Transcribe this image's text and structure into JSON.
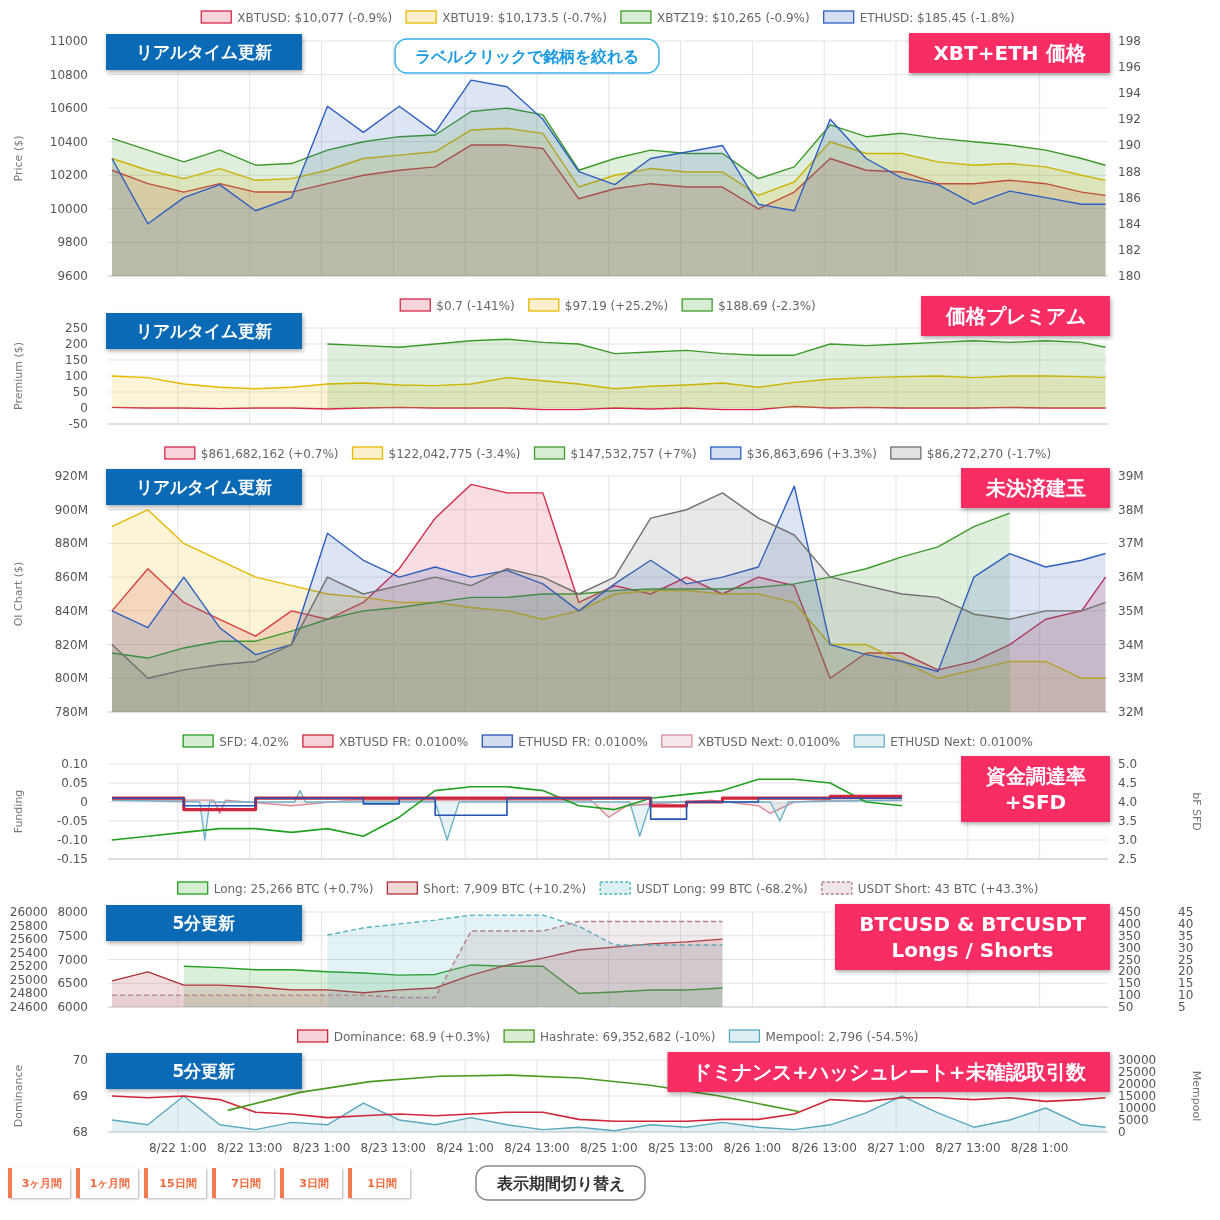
{
  "chart_data": [
    {
      "type": "area",
      "ylabel": "Price ($)",
      "legend": "top",
      "grid": true,
      "tick_labels": "y",
      "annotations": [
        "リアルタイム更新",
        "XBT+ETH 価格",
        "ラベルクリックで銘柄を絞れる"
      ],
      "xlim": [
        "--08-21T13:20",
        "--08-28T12:25"
      ],
      "xticks": [
        {
          "value": "--08-22T01:00",
          "label": null
        },
        {
          "value": "--08-22T13:00",
          "label": null
        },
        {
          "value": "--08-23T01:00",
          "label": null
        },
        {
          "value": "--08-23T13:00",
          "label": null
        },
        {
          "value": "--08-24T01:00",
          "label": null
        },
        {
          "value": "--08-24T13:00",
          "label": null
        },
        {
          "value": "--08-25T01:00",
          "label": null
        },
        {
          "value": "--08-25T13:00",
          "label": null
        },
        {
          "value": "--08-26T01:00",
          "label": null
        },
        {
          "value": "--08-26T13:00",
          "label": null
        },
        {
          "value": "--08-27T01:00",
          "label": null
        },
        {
          "value": "--08-27T13:00",
          "label": null
        },
        {
          "value": "--08-28T01:00",
          "label": null
        }
      ],
      "ylim": [
        9600,
        11000
      ],
      "yticks": [
        9600,
        9800,
        10000,
        10200,
        10400,
        10600,
        10800,
        11000
      ],
      "y2lim": [
        180,
        198
      ],
      "y2ticks": [
        180,
        182,
        184,
        186,
        188,
        190,
        192,
        194,
        196,
        198
      ],
      "x": [
        "--08-21T14:00",
        "--08-21T20:00",
        "--08-22T02:00",
        "--08-22T08:00",
        "--08-22T14:00",
        "--08-22T20:00",
        "--08-23T02:00",
        "--08-23T08:00",
        "--08-23T14:00",
        "--08-23T20:00",
        "--08-24T02:00",
        "--08-24T08:00",
        "--08-24T14:00",
        "--08-24T20:00",
        "--08-25T02:00",
        "--08-25T08:00",
        "--08-25T14:00",
        "--08-25T20:00",
        "--08-26T02:00",
        "--08-26T08:00",
        "--08-26T14:00",
        "--08-26T20:00",
        "--08-27T02:00",
        "--08-27T08:00",
        "--08-27T14:00",
        "--08-27T20:00",
        "--08-28T02:00",
        "--08-28T08:00",
        "--08-28T12:00"
      ],
      "series": [
        {
          "name": "XBTUSD: $10,077 (-0.9%)",
          "color": "#d6294a",
          "values": [
            10230,
            10150,
            10100,
            10150,
            10100,
            10100,
            10150,
            10200,
            10230,
            10250,
            10380,
            10380,
            10360,
            10060,
            10120,
            10150,
            10130,
            10130,
            10000,
            10100,
            10300,
            10230,
            10220,
            10150,
            10150,
            10170,
            10150,
            10100,
            10080
          ]
        },
        {
          "name": "XBTU19: $10,173.5 (-0.7%)",
          "color": "#e6b800",
          "values": [
            10300,
            10230,
            10180,
            10240,
            10170,
            10180,
            10230,
            10300,
            10320,
            10340,
            10470,
            10480,
            10450,
            10130,
            10200,
            10240,
            10220,
            10220,
            10080,
            10160,
            10400,
            10330,
            10330,
            10280,
            10260,
            10270,
            10250,
            10200,
            10170
          ]
        },
        {
          "name": "XBTZ19: $10,265 (-0.9%)",
          "color": "#3c9a2a",
          "values": [
            10420,
            10350,
            10280,
            10350,
            10260,
            10270,
            10350,
            10400,
            10430,
            10440,
            10580,
            10600,
            10560,
            10230,
            10300,
            10350,
            10330,
            10330,
            10180,
            10250,
            10500,
            10430,
            10450,
            10420,
            10400,
            10380,
            10350,
            10300,
            10260
          ]
        },
        {
          "name": "ETHUSD: $185.45 (-1.8%)",
          "color": "#2d5fc0",
          "axis": "y2",
          "values": [
            189,
            184,
            186,
            187,
            185,
            186,
            193,
            191,
            193,
            191,
            195,
            194.5,
            192,
            188,
            187,
            189,
            189.5,
            190,
            185.5,
            185,
            192,
            189,
            187.5,
            187,
            185.5,
            186.5,
            186,
            185.5,
            185.5
          ]
        }
      ]
    },
    {
      "type": "area",
      "ylabel": "Premium ($)",
      "legend": "top",
      "grid": true,
      "tick_labels": "y",
      "annotations": [
        "リアルタイム更新",
        "価格プレミアム"
      ],
      "xlim": [
        "--08-21T13:20",
        "--08-28T12:25"
      ],
      "xticks": [
        {
          "value": "--08-22T01:00",
          "label": null
        },
        {
          "value": "--08-22T13:00",
          "label": null
        },
        {
          "value": "--08-23T01:00",
          "label": null
        },
        {
          "value": "--08-23T13:00",
          "label": null
        },
        {
          "value": "--08-24T01:00",
          "label": null
        },
        {
          "value": "--08-24T13:00",
          "label": null
        },
        {
          "value": "--08-25T01:00",
          "label": null
        },
        {
          "value": "--08-25T13:00",
          "label": null
        },
        {
          "value": "--08-26T01:00",
          "label": null
        },
        {
          "value": "--08-26T13:00",
          "label": null
        },
        {
          "value": "--08-27T01:00",
          "label": null
        },
        {
          "value": "--08-27T13:00",
          "label": null
        },
        {
          "value": "--08-28T01:00",
          "label": null
        }
      ],
      "ylim": [
        -50,
        250
      ],
      "yticks": [
        -50,
        0,
        50,
        100,
        150,
        200,
        250
      ],
      "x": [
        "--08-21T14:00",
        "--08-21T20:00",
        "--08-22T02:00",
        "--08-22T08:00",
        "--08-22T14:00",
        "--08-22T20:00",
        "--08-23T02:00",
        "--08-23T08:00",
        "--08-23T14:00",
        "--08-23T20:00",
        "--08-24T02:00",
        "--08-24T08:00",
        "--08-24T14:00",
        "--08-24T20:00",
        "--08-25T02:00",
        "--08-25T08:00",
        "--08-25T14:00",
        "--08-25T20:00",
        "--08-26T02:00",
        "--08-26T08:00",
        "--08-26T14:00",
        "--08-26T20:00",
        "--08-27T02:00",
        "--08-27T08:00",
        "--08-27T14:00",
        "--08-27T20:00",
        "--08-28T02:00",
        "--08-28T08:00",
        "--08-28T12:00"
      ],
      "series": [
        {
          "name": "$0.7 (-141%)",
          "color": "#d6294a",
          "values": [
            2,
            0,
            0,
            -2,
            0,
            0,
            -3,
            0,
            2,
            0,
            0,
            0,
            -5,
            -5,
            0,
            -3,
            0,
            -5,
            -5,
            5,
            0,
            2,
            0,
            0,
            0,
            2,
            0,
            0,
            0
          ]
        },
        {
          "name": "$97.19 (+25.2%)",
          "color": "#e6b800",
          "values": [
            100,
            95,
            75,
            65,
            60,
            65,
            75,
            78,
            72,
            70,
            75,
            95,
            85,
            75,
            60,
            68,
            72,
            78,
            65,
            80,
            90,
            95,
            98,
            100,
            95,
            100,
            100,
            98,
            95
          ]
        },
        {
          "name": "$188.69 (-2.3%)",
          "color": "#3c9a2a",
          "values": [
            null,
            null,
            null,
            null,
            null,
            null,
            200,
            195,
            190,
            200,
            210,
            215,
            205,
            200,
            170,
            175,
            180,
            170,
            165,
            165,
            200,
            195,
            200,
            205,
            210,
            205,
            210,
            205,
            190
          ]
        }
      ]
    },
    {
      "type": "area",
      "ylabel": "OI Chart ($)",
      "legend": "top",
      "grid": true,
      "tick_labels": "y",
      "annotations": [
        "リアルタイム更新",
        "未決済建玉"
      ],
      "xlim": [
        "--08-21T13:20",
        "--08-28T12:25"
      ],
      "xticks": [
        {
          "value": "--08-22T01:00",
          "label": null
        },
        {
          "value": "--08-22T13:00",
          "label": null
        },
        {
          "value": "--08-23T01:00",
          "label": null
        },
        {
          "value": "--08-23T13:00",
          "label": null
        },
        {
          "value": "--08-24T01:00",
          "label": null
        },
        {
          "value": "--08-24T13:00",
          "label": null
        },
        {
          "value": "--08-25T01:00",
          "label": null
        },
        {
          "value": "--08-25T13:00",
          "label": null
        },
        {
          "value": "--08-26T01:00",
          "label": null
        },
        {
          "value": "--08-26T13:00",
          "label": null
        },
        {
          "value": "--08-27T01:00",
          "label": null
        },
        {
          "value": "--08-27T13:00",
          "label": null
        },
        {
          "value": "--08-28T01:00",
          "label": null
        }
      ],
      "ylim": [
        780,
        920
      ],
      "yticks": [
        {
          "value": 780,
          "label": "780M"
        },
        {
          "value": 800,
          "label": "800M"
        },
        {
          "value": 820,
          "label": "820M"
        },
        {
          "value": 840,
          "label": "840M"
        },
        {
          "value": 860,
          "label": "860M"
        },
        {
          "value": 880,
          "label": "880M"
        },
        {
          "value": 900,
          "label": "900M"
        },
        {
          "value": 920,
          "label": "920M"
        }
      ],
      "y2lim": [
        32,
        39
      ],
      "y2ticks": [
        {
          "value": 32,
          "label": "32M"
        },
        {
          "value": 33,
          "label": "33M"
        },
        {
          "value": 34,
          "label": "34M"
        },
        {
          "value": 35,
          "label": "35M"
        },
        {
          "value": 36,
          "label": "36M"
        },
        {
          "value": 37,
          "label": "37M"
        },
        {
          "value": 38,
          "label": "38M"
        },
        {
          "value": 39,
          "label": "39M"
        }
      ],
      "x": [
        "--08-21T14:00",
        "--08-21T20:00",
        "--08-22T02:00",
        "--08-22T08:00",
        "--08-22T14:00",
        "--08-22T20:00",
        "--08-23T02:00",
        "--08-23T08:00",
        "--08-23T14:00",
        "--08-23T20:00",
        "--08-24T02:00",
        "--08-24T08:00",
        "--08-24T14:00",
        "--08-24T20:00",
        "--08-25T02:00",
        "--08-25T08:00",
        "--08-25T14:00",
        "--08-25T20:00",
        "--08-26T02:00",
        "--08-26T08:00",
        "--08-26T14:00",
        "--08-26T20:00",
        "--08-27T02:00",
        "--08-27T08:00",
        "--08-27T14:00",
        "--08-27T20:00",
        "--08-28T02:00",
        "--08-28T08:00",
        "--08-28T12:00"
      ],
      "series": [
        {
          "name": "$861,682,162 (+0.7%)",
          "color": "#d6294a",
          "values": [
            840,
            865,
            845,
            835,
            825,
            840,
            835,
            845,
            865,
            895,
            915,
            910,
            910,
            845,
            855,
            850,
            860,
            850,
            860,
            855,
            800,
            815,
            815,
            805,
            810,
            820,
            835,
            840,
            860
          ]
        },
        {
          "name": "$122,042,775 (-3.4%)",
          "color": "#e6b800",
          "values": [
            890,
            900,
            880,
            870,
            860,
            855,
            850,
            848,
            845,
            845,
            842,
            840,
            835,
            840,
            850,
            852,
            852,
            850,
            850,
            845,
            820,
            820,
            810,
            800,
            805,
            810,
            810,
            800,
            800
          ]
        },
        {
          "name": "$147,532,757 (+7%)",
          "color": "#3c9a2a",
          "values": [
            815,
            812,
            818,
            822,
            822,
            828,
            835,
            840,
            842,
            845,
            848,
            848,
            850,
            850,
            852,
            853,
            853,
            853,
            854,
            856,
            860,
            865,
            872,
            878,
            890,
            898,
            null,
            null,
            null
          ]
        },
        {
          "name": "$36,863,696 (+3.3%)",
          "color": "#2d5fc0",
          "axis": "y2",
          "values": [
            35.0,
            34.5,
            36.0,
            34.5,
            33.7,
            34.0,
            37.3,
            36.5,
            36.0,
            36.3,
            36.0,
            36.2,
            35.8,
            35.0,
            35.8,
            36.5,
            35.8,
            36.0,
            36.3,
            38.7,
            34.0,
            33.7,
            33.5,
            33.2,
            36.0,
            36.7,
            36.3,
            36.5,
            36.7
          ]
        },
        {
          "name": "$86,272,270 (-1.7%)",
          "color": "#707070",
          "values": [
            820,
            800,
            805,
            808,
            810,
            820,
            860,
            850,
            855,
            860,
            855,
            865,
            860,
            850,
            860,
            895,
            900,
            910,
            895,
            885,
            860,
            855,
            850,
            848,
            838,
            835,
            840,
            840,
            845
          ]
        }
      ]
    },
    {
      "type": "line",
      "ylabel": "Funding",
      "y2label": "bF SFD",
      "legend": "top",
      "grid": true,
      "tick_labels": "y",
      "annotations": [
        "資金調達率\n+SFD"
      ],
      "xlim": [
        "--08-21T13:20",
        "--08-28T12:25"
      ],
      "xticks": [
        {
          "value": "--08-22T01:00",
          "label": null
        },
        {
          "value": "--08-22T13:00",
          "label": null
        },
        {
          "value": "--08-23T01:00",
          "label": null
        },
        {
          "value": "--08-23T13:00",
          "label": null
        },
        {
          "value": "--08-24T01:00",
          "label": null
        },
        {
          "value": "--08-24T13:00",
          "label": null
        },
        {
          "value": "--08-25T01:00",
          "label": null
        },
        {
          "value": "--08-25T13:00",
          "label": null
        },
        {
          "value": "--08-26T01:00",
          "label": null
        },
        {
          "value": "--08-26T13:00",
          "label": null
        },
        {
          "value": "--08-27T01:00",
          "label": null
        },
        {
          "value": "--08-27T13:00",
          "label": null
        },
        {
          "value": "--08-28T01:00",
          "label": null
        }
      ],
      "ylim": [
        -0.15,
        0.1
      ],
      "yticks": [
        {
          "value": -0.15,
          "label": "-0.15"
        },
        {
          "value": -0.1,
          "label": "-0.10"
        },
        {
          "value": -0.05,
          "label": "-0.05"
        },
        0,
        0.05,
        {
          "value": 0.1,
          "label": "0.10"
        }
      ],
      "y2lim": [
        2.5,
        5
      ],
      "y2ticks": [
        2.5,
        {
          "value": 3,
          "label": "3.0"
        },
        3.5,
        {
          "value": 4,
          "label": "4.0"
        },
        4.5,
        {
          "value": 5,
          "label": "5.0"
        }
      ],
      "x": [
        "--08-21T14:00",
        "--08-21T20:00",
        "--08-22T02:00",
        "--08-22T08:00",
        "--08-22T14:00",
        "--08-22T20:00",
        "--08-23T02:00",
        "--08-23T08:00",
        "--08-23T14:00",
        "--08-23T20:00",
        "--08-24T02:00",
        "--08-24T08:00",
        "--08-24T14:00",
        "--08-24T20:00",
        "--08-25T02:00",
        "--08-25T08:00",
        "--08-25T14:00",
        "--08-25T20:00",
        "--08-26T02:00",
        "--08-26T08:00",
        "--08-26T14:00",
        "--08-26T20:00",
        "--08-27T02:00"
      ],
      "series": [
        {
          "name": "SFD: 4.02%",
          "color": "#22a020",
          "axis": "y2",
          "values": [
            3.0,
            3.1,
            3.2,
            3.3,
            3.3,
            3.2,
            3.3,
            3.1,
            3.6,
            4.3,
            4.4,
            4.4,
            4.3,
            3.9,
            3.8,
            4.1,
            4.2,
            4.3,
            4.6,
            4.6,
            4.5,
            4.0,
            3.9
          ]
        },
        {
          "name": "XBTUSD FR: 0.0100%",
          "color": "#d0253a",
          "type": "step",
          "values": [
            0.01,
            0.01,
            -0.02,
            -0.02,
            0.01,
            0.01,
            0.01,
            0.01,
            0.01,
            0.01,
            0.01,
            0.01,
            0.01,
            0.01,
            0.01,
            -0.01,
            0,
            0.01,
            0.01,
            0.01,
            0.015,
            0.015,
            0.015
          ]
        },
        {
          "name": "ETHUSD FR: 0.0100%",
          "color": "#2453b0",
          "type": "step",
          "values": [
            0.01,
            0.01,
            -0.01,
            -0.01,
            0.01,
            0.01,
            0.01,
            -0.005,
            0.01,
            -0.035,
            -0.035,
            0.01,
            0.01,
            0.01,
            0.01,
            -0.045,
            0,
            0,
            0.01,
            0.01,
            0.01,
            0.01,
            0.01
          ]
        },
        {
          "name": "XBTUSD Next: 0.0100%",
          "color": "#d88e9a",
          "type": "area",
          "x": [
            "--08-21T14:00",
            "--08-22T07:00",
            "--08-22T08:00",
            "--08-22T09:00",
            "--08-22T20:00",
            "--08-23T06:00",
            "--08-24T22:00",
            "--08-25T01:00",
            "--08-25T04:00",
            "--08-25T18:00",
            "--08-26T02:00",
            "--08-26T04:00",
            "--08-26T08:00",
            "--08-26T14:00",
            "--08-27T02:00"
          ],
          "values": [
            0.005,
            0.005,
            -0.03,
            0.005,
            -0.01,
            0.005,
            0.005,
            -0.04,
            -0.01,
            0.005,
            -0.01,
            -0.03,
            0,
            0.005,
            0.005
          ]
        },
        {
          "name": "ETHUSD Next: 0.0100%",
          "color": "#6fb2c8",
          "type": "area",
          "x": [
            "--08-21T14:00",
            "--08-22T04:40",
            "--08-22T05:30",
            "--08-22T06:20",
            "--08-22T20:30",
            "--08-22T21:25",
            "--08-22T22:20",
            "--08-23T20:00",
            "--08-23T22:00",
            "--08-24T00:00",
            "--08-25T04:30",
            "--08-25T06:10",
            "--08-25T08:00",
            "--08-26T04:00",
            "--08-26T05:35",
            "--08-26T07:00",
            "--08-27T02:00"
          ],
          "values": [
            0.005,
            0,
            -0.1,
            0,
            0,
            0.03,
            0,
            0,
            -0.1,
            0,
            0,
            -0.09,
            0,
            0,
            -0.05,
            0,
            0.005
          ]
        }
      ]
    },
    {
      "type": "area",
      "legend": "top",
      "grid": true,
      "tick_labels": "y",
      "annotations": [
        "5分更新",
        "BTCUSD & BTCUSDT\nLongs / Shorts"
      ],
      "xlim": [
        "--08-21T13:20",
        "--08-28T12:25"
      ],
      "xticks": [
        {
          "value": "--08-22T01:00",
          "label": null
        },
        {
          "value": "--08-22T13:00",
          "label": null
        },
        {
          "value": "--08-23T01:00",
          "label": null
        },
        {
          "value": "--08-23T13:00",
          "label": null
        },
        {
          "value": "--08-24T01:00",
          "label": null
        },
        {
          "value": "--08-24T13:00",
          "label": null
        },
        {
          "value": "--08-25T01:00",
          "label": null
        },
        {
          "value": "--08-25T13:00",
          "label": null
        },
        {
          "value": "--08-26T01:00",
          "label": null
        },
        {
          "value": "--08-26T13:00",
          "label": null
        },
        {
          "value": "--08-27T01:00",
          "label": null
        },
        {
          "value": "--08-27T13:00",
          "label": null
        },
        {
          "value": "--08-28T01:00",
          "label": null
        }
      ],
      "ylim": [
        6000,
        8000
      ],
      "yticks": [
        6000,
        6500,
        7000,
        7500,
        8000
      ],
      "y3lim": [
        24600,
        26000
      ],
      "y3ticks": [
        24600,
        24800,
        25000,
        25200,
        25400,
        25600,
        25800,
        26000
      ],
      "y2lim": [
        50,
        450
      ],
      "y2ticks": [
        50,
        100,
        150,
        200,
        250,
        300,
        350,
        400,
        450
      ],
      "x": [
        "--08-21T14:00",
        "--08-21T20:00",
        "--08-22T02:00",
        "--08-22T08:00",
        "--08-22T14:00",
        "--08-22T20:00",
        "--08-23T02:00",
        "--08-23T08:00",
        "--08-23T14:00",
        "--08-23T20:00",
        "--08-24T02:00",
        "--08-24T08:00",
        "--08-24T14:00",
        "--08-24T20:00",
        "--08-25T02:00",
        "--08-25T08:00",
        "--08-25T14:00",
        "--08-25T20:00"
      ],
      "series": [
        {
          "name": "Long: 25,266 BTC (+0.7%)",
          "color": "#22a020",
          "axis": "y3",
          "values": [
            null,
            null,
            25200,
            25180,
            25150,
            25150,
            25120,
            25100,
            25070,
            25080,
            25220,
            25200,
            25200,
            24800,
            24820,
            24850,
            24850,
            24880
          ]
        },
        {
          "name": "Short: 7,909 BTC (+10.2%)",
          "color": "#b03038",
          "values": [
            6550,
            6740,
            6460,
            6460,
            6420,
            6360,
            6360,
            6300,
            6360,
            6400,
            6670,
            6880,
            7030,
            7200,
            7260,
            7330,
            7370,
            7430
          ]
        },
        {
          "name": "USDT Long: 99 BTC (-68.2%)",
          "color": "#4fb3c0",
          "axis": "y2",
          "line_style": "dashed",
          "values": [
            null,
            null,
            null,
            null,
            null,
            null,
            353,
            383,
            400,
            416,
            437,
            437,
            437,
            390,
            311,
            311,
            311,
            311
          ]
        }
      ]
    },
    {
      "type": "area",
      "legend": "top",
      "tick_labels": "y",
      "xlim": [
        "--08-21T13:20",
        "--08-28T12:25"
      ],
      "ylim": [
        5,
        45
      ],
      "yticks": [
        5,
        10,
        15,
        20,
        25,
        30,
        35,
        40,
        45
      ],
      "x": [
        "--08-21T14:00",
        "--08-21T20:00",
        "--08-22T02:00",
        "--08-22T08:00",
        "--08-22T14:00",
        "--08-22T20:00",
        "--08-23T02:00",
        "--08-23T08:00",
        "--08-23T14:00",
        "--08-23T20:00",
        "--08-24T02:00",
        "--08-24T08:00",
        "--08-24T14:00",
        "--08-24T20:00",
        "--08-25T02:00",
        "--08-25T08:00",
        "--08-25T14:00",
        "--08-25T20:00"
      ],
      "series": [
        {
          "name": "USDT Short: 43 BTC (+43.3%)",
          "color": "#b08090",
          "line_style": "dashed",
          "values": [
            10,
            10,
            10,
            10,
            10,
            10,
            10,
            10,
            9,
            9,
            37,
            37,
            37,
            41,
            41,
            41,
            41,
            41
          ]
        }
      ]
    },
    {
      "type": "line",
      "ylabel": "Dominance",
      "y2label": "Mempool",
      "legend": "top",
      "grid": true,
      "annotations": [
        "5分更新",
        "ドミナンス+ハッシュレート+未確認取引数",
        "3ヶ月間",
        "1ヶ月間",
        "15日間",
        "7日間",
        "3日間",
        "1日間",
        "表示期間切り替え"
      ],
      "xlim": [
        "--08-21T13:20",
        "--08-28T12:25"
      ],
      "xticks": [
        {
          "value": "--08-22T01:00",
          "label": "8/22 1:00"
        },
        {
          "value": "--08-22T13:00",
          "label": "8/22 13:00"
        },
        {
          "value": "--08-23T01:00",
          "label": "8/23 1:00"
        },
        {
          "value": "--08-23T13:00",
          "label": "8/23 13:00"
        },
        {
          "value": "--08-24T01:00",
          "label": "8/24 1:00"
        },
        {
          "value": "--08-24T13:00",
          "label": "8/24 13:00"
        },
        {
          "value": "--08-25T01:00",
          "label": "8/25 1:00"
        },
        {
          "value": "--08-25T13:00",
          "label": "8/25 13:00"
        },
        {
          "value": "--08-26T01:00",
          "label": "8/26 1:00"
        },
        {
          "value": "--08-26T13:00",
          "label": "8/26 13:00"
        },
        {
          "value": "--08-27T01:00",
          "label": "8/27 1:00"
        },
        {
          "value": "--08-27T13:00",
          "label": "8/27 13:00"
        },
        {
          "value": "--08-28T01:00",
          "label": "8/28 1:00"
        }
      ],
      "ylim": [
        68,
        70
      ],
      "yticks": [
        68,
        69,
        70
      ],
      "y2lim": [
        0,
        30000
      ],
      "y2ticks": [
        0,
        5000,
        10000,
        15000,
        20000,
        25000,
        30000
      ],
      "x": [
        "--08-21T14:00",
        "--08-21T20:00",
        "--08-22T02:00",
        "--08-22T08:00",
        "--08-22T14:00",
        "--08-22T20:00",
        "--08-23T02:00",
        "--08-23T08:00",
        "--08-23T14:00",
        "--08-23T20:00",
        "--08-24T02:00",
        "--08-24T08:00",
        "--08-24T14:00",
        "--08-24T20:00",
        "--08-25T02:00",
        "--08-25T08:00",
        "--08-25T14:00",
        "--08-25T20:00",
        "--08-26T02:00",
        "--08-26T08:00",
        "--08-26T14:00",
        "--08-26T20:00",
        "--08-27T02:00",
        "--08-27T08:00",
        "--08-27T14:00",
        "--08-27T20:00",
        "--08-28T02:00",
        "--08-28T08:00",
        "--08-28T12:00"
      ],
      "series": [
        {
          "name": "Dominance: 68.9 (+0.3%)",
          "color": "#d0253a",
          "values": [
            69.0,
            68.95,
            69.0,
            68.9,
            68.55,
            68.5,
            68.4,
            68.45,
            68.5,
            68.45,
            68.5,
            68.55,
            68.55,
            68.35,
            68.3,
            68.3,
            68.3,
            68.35,
            68.35,
            68.5,
            68.9,
            68.85,
            68.95,
            68.95,
            68.9,
            68.95,
            68.85,
            68.9,
            68.95
          ]
        },
        {
          "name": "Hashrate: 69,352,682 (-10%)",
          "color": "#4a9a20",
          "x": [
            "--08-22T09:20",
            "--08-22T21:25",
            "--08-23T09:05",
            "--08-23T20:50",
            "--08-24T08:30",
            "--08-24T20:10",
            "--08-25T07:55",
            "--08-25T19:30",
            "--08-26T08:55"
          ],
          "values": [
            68.6,
            69.1,
            69.4,
            69.55,
            69.58,
            69.5,
            69.3,
            69.0,
            68.56
          ]
        },
        {
          "name": "Mempool: 2,796 (-54.5%)",
          "color": "#5aa8bd",
          "type": "area",
          "axis": "y2",
          "values": [
            5000,
            3000,
            15000,
            3000,
            1000,
            4000,
            3000,
            12000,
            5000,
            3000,
            6000,
            3000,
            1000,
            2000,
            500,
            3000,
            2000,
            4000,
            2000,
            1000,
            3000,
            8000,
            15000,
            8000,
            2000,
            5000,
            10000,
            3000,
            2000
          ]
        }
      ]
    }
  ]
}
